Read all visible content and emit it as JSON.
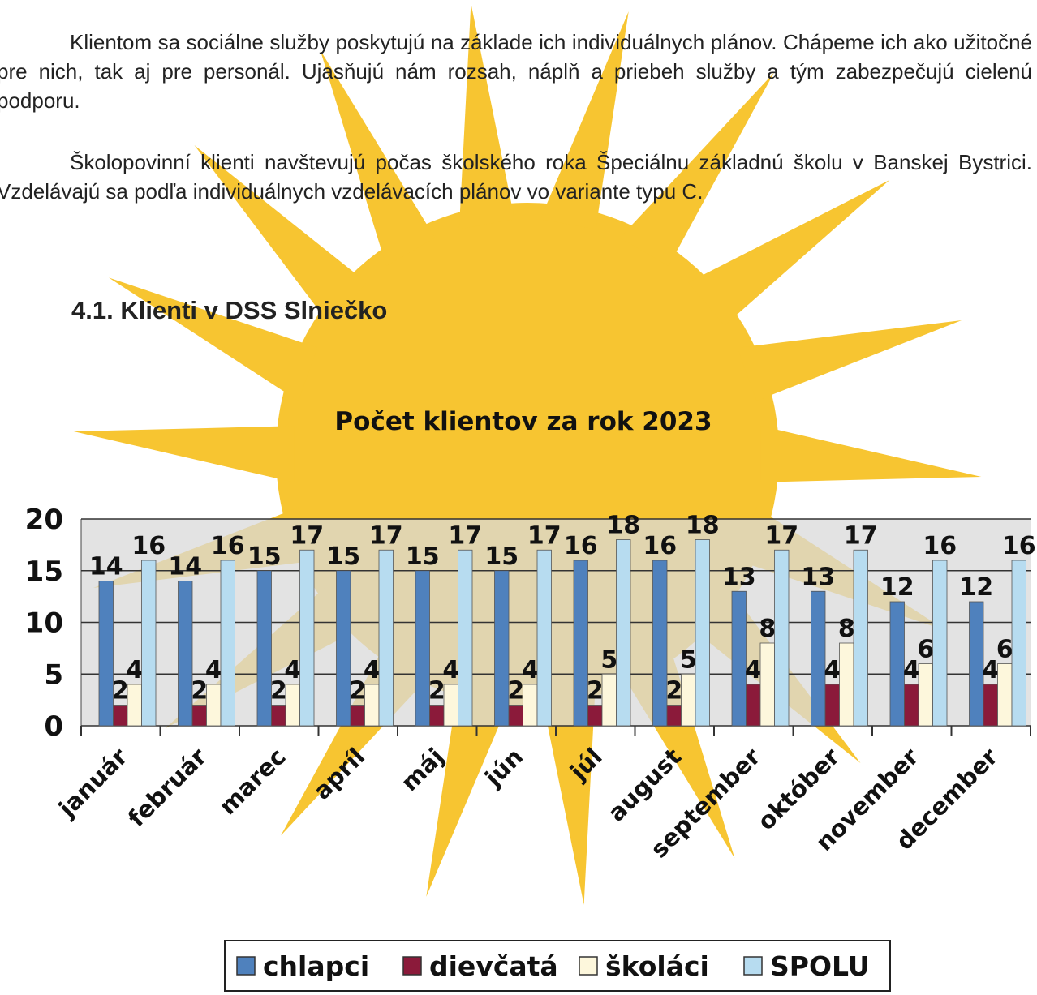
{
  "paragraphs": [
    "Klientom sa sociálne služby poskytujú na základe ich individuálnych plánov. Chápeme ich ako užitočné pre nich, tak aj pre personál. Ujasňujú nám rozsah, náplň a priebeh služby a tým zabezpečujú cielenú podporu.",
    "Školopovinní klienti navštevujú počas školského roka Špeciálnu základnú školu v Banskej Bystrici. Vzdelávajú sa podľa individuálnych vzdelávacích plánov vo variante typu C."
  ],
  "heading": "4.1. Klienti v DSS Slniečko",
  "chart_data": {
    "type": "bar",
    "title": "Počet klientov za rok 2023",
    "categories": [
      "január",
      "február",
      "marec",
      "apríl",
      "máj",
      "jún",
      "júl",
      "august",
      "september",
      "október",
      "november",
      "december"
    ],
    "series": [
      {
        "name": "chlapci",
        "color": "#4f81bd",
        "values": [
          14,
          14,
          15,
          15,
          15,
          15,
          16,
          16,
          13,
          13,
          12,
          12
        ]
      },
      {
        "name": "dievčatá",
        "color": "#8b1a3a",
        "values": [
          2,
          2,
          2,
          2,
          2,
          2,
          2,
          2,
          4,
          4,
          4,
          4
        ]
      },
      {
        "name": "školáci",
        "color": "#fdf7dc",
        "values": [
          4,
          4,
          4,
          4,
          4,
          4,
          5,
          5,
          8,
          8,
          6,
          6
        ]
      },
      {
        "name": "SPOLU",
        "color": "#b7dcf0",
        "values": [
          16,
          16,
          17,
          17,
          17,
          17,
          18,
          18,
          17,
          17,
          16,
          16
        ]
      }
    ],
    "ylim": [
      0,
      20
    ],
    "yticks": [
      0,
      5,
      10,
      15,
      20
    ],
    "grid": true,
    "legend": "bottom"
  }
}
